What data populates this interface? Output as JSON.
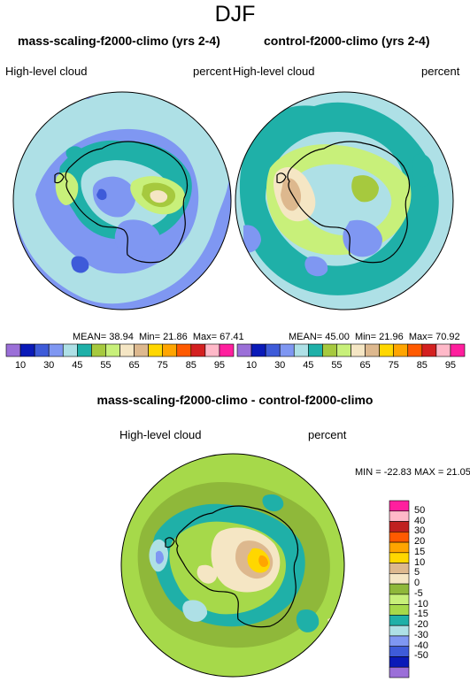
{
  "title": "DJF",
  "panels": [
    {
      "title": "mass-scaling-f2000-climo (yrs 2-4)",
      "variable": "High-level cloud",
      "units": "percent",
      "stats": {
        "mean_label": "MEAN=",
        "mean": "38.94",
        "min_label": "Min=",
        "min": "21.86",
        "max_label": "Max=",
        "max": "67.41"
      }
    },
    {
      "title": "control-f2000-climo (yrs 2-4)",
      "variable": "High-level cloud",
      "units": "percent",
      "stats": {
        "mean_label": "MEAN=",
        "mean": "45.00",
        "min_label": "Min=",
        "min": "21.96",
        "max_label": "Max=",
        "max": "70.92"
      }
    },
    {
      "title": "mass-scaling-f2000-climo - control-f2000-climo",
      "variable": "High-level cloud",
      "units": "percent",
      "minmax": "MIN = -22.83 MAX = 21.05"
    }
  ],
  "colorbar_abs": {
    "colors": [
      "#9b6fd8",
      "#0a1ab8",
      "#3e5bd9",
      "#7f97f2",
      "#aee0e6",
      "#1fb0a8",
      "#a6c93e",
      "#c8f07a",
      "#f5e6c4",
      "#ddb88e",
      "#ffd700",
      "#ffa500",
      "#ff5a00",
      "#d42020",
      "#ffb8c8",
      "#ff1f9e"
    ],
    "labels": [
      "10",
      "30",
      "45",
      "65",
      "85"
    ],
    "labels_all": [
      "10",
      "30",
      "45",
      "55",
      "65",
      "75",
      "85",
      "95"
    ]
  },
  "colorbar_diff": {
    "colors": [
      "#ff1f9e",
      "#ffb8c8",
      "#c02020",
      "#ff5a00",
      "#ffa500",
      "#ffd700",
      "#ddb88e",
      "#f5e6c4",
      "#8fb83a",
      "#c8f07a",
      "#a6d94a",
      "#1fb0a8",
      "#aee0e6",
      "#7f97f2",
      "#3e5bd9",
      "#0a1ab8",
      "#9b6fd8"
    ],
    "labels": [
      "50",
      "40",
      "30",
      "20",
      "15",
      "10",
      "5",
      "0",
      "-5",
      "-10",
      "-15",
      "-20",
      "-30",
      "-40",
      "-50"
    ]
  },
  "map_colors": {
    "ocean_a": "#7f97f2",
    "ocean_b": "#aee0e6",
    "teal": "#1fb0a8",
    "green": "#a6c93e",
    "lightgreen": "#c8f07a",
    "cream": "#f5e6c4",
    "tan": "#ddb88e",
    "diffbase": "#a6d94a",
    "diffolive": "#8fb83a",
    "yellow": "#ffd700",
    "orange": "#ffa500"
  }
}
